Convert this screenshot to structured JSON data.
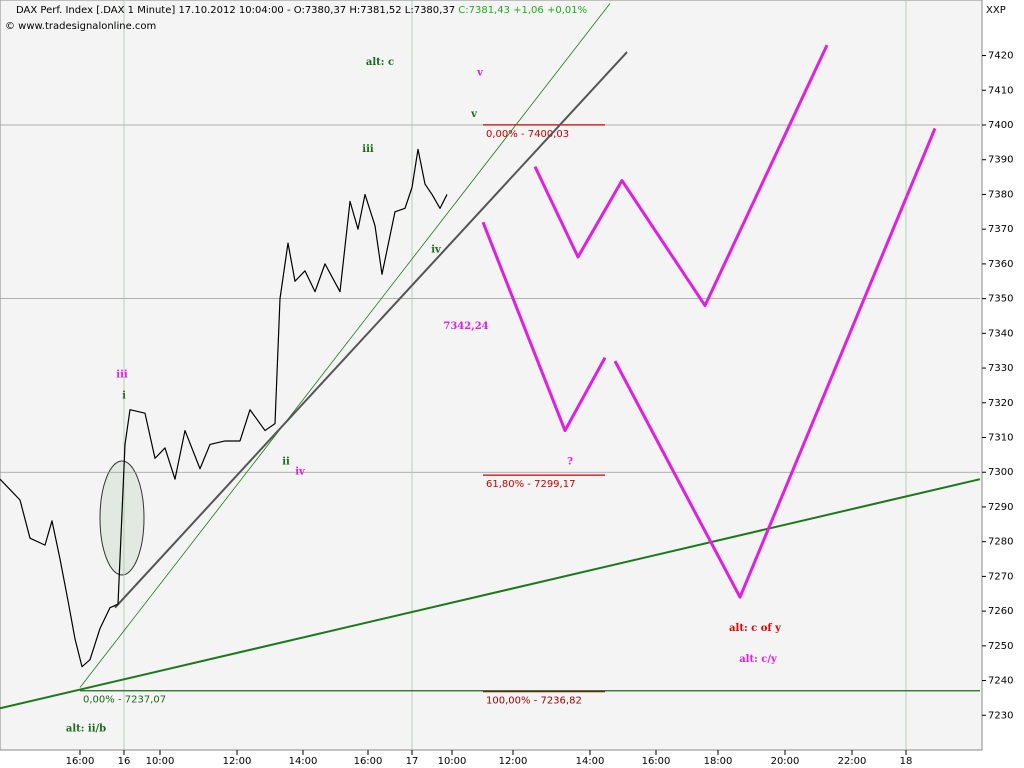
{
  "chart_data": {
    "type": "line",
    "title": "DAX Perf. Index [.DAX 1 Minute] 17.10.2012 10:04:00 - O:7380,37 H:7381,52 L:7380,37",
    "title_close": "C:7381,43 +1,06 +0,01%",
    "title_close_color": "#22aa22",
    "credit": "© www.tradesignalonline.com",
    "symbol": "XXP",
    "xlim": [
      0,
      980
    ],
    "ylim": [
      7220,
      7436
    ],
    "xticks": [
      {
        "value": 80,
        "label": "16:00"
      },
      {
        "value": 124,
        "label": "16"
      },
      {
        "value": 160,
        "label": "10:00"
      },
      {
        "value": 237,
        "label": "12:00"
      },
      {
        "value": 303,
        "label": "14:00"
      },
      {
        "value": 368,
        "label": "16:00"
      },
      {
        "value": 412,
        "label": "17"
      },
      {
        "value": 452,
        "label": "10:00"
      },
      {
        "value": 513,
        "label": "12:00"
      },
      {
        "value": 590,
        "label": "14:00"
      },
      {
        "value": 656,
        "label": "16:00"
      },
      {
        "value": 718,
        "label": "18:00"
      },
      {
        "value": 785,
        "label": "20:00"
      },
      {
        "value": 852,
        "label": "22:00"
      },
      {
        "value": 906,
        "label": "18"
      }
    ],
    "xgrid": [
      124,
      412,
      906
    ],
    "yticks": [
      7230,
      7240,
      7250,
      7260,
      7270,
      7280,
      7290,
      7300,
      7310,
      7320,
      7330,
      7340,
      7350,
      7360,
      7370,
      7380,
      7390,
      7400,
      7410,
      7420
    ],
    "ygrid": [
      7300,
      7350,
      7400
    ],
    "price": {
      "color": "#000000",
      "x": [
        0,
        10,
        20,
        30,
        45,
        52,
        60,
        68,
        75,
        82,
        90,
        100,
        110,
        118,
        125,
        130,
        145,
        155,
        165,
        175,
        185,
        200,
        210,
        225,
        240,
        250,
        265,
        275,
        280,
        288,
        295,
        305,
        315,
        325,
        340,
        350,
        358,
        365,
        375,
        382,
        395,
        405,
        412,
        418,
        425,
        432,
        440,
        447
      ],
      "values": [
        7298,
        7295,
        7292,
        7281,
        7279,
        7286,
        7275,
        7263,
        7252,
        7244,
        7246,
        7255,
        7261,
        7262,
        7308,
        7318,
        7317,
        7304,
        7307,
        7298,
        7312,
        7301,
        7308,
        7309,
        7309,
        7318,
        7312,
        7314,
        7350,
        7366,
        7355,
        7358,
        7352,
        7360,
        7352,
        7378,
        7370,
        7380,
        7371,
        7357,
        7375,
        7376,
        7382,
        7393,
        7383,
        7380,
        7376,
        7380
      ]
    },
    "lines": [
      {
        "color": "#1a7a1a",
        "width": 2,
        "x": [
          0,
          980
        ],
        "values": [
          7232,
          7298
        ]
      },
      {
        "color": "#1a7a1a",
        "width": 0.8,
        "x": [
          80,
          610
        ],
        "values": [
          7238,
          7435
        ]
      },
      {
        "color": "#555555",
        "width": 2,
        "x": [
          115,
          627
        ],
        "values": [
          7261,
          7421
        ]
      },
      {
        "color": "#e020e0",
        "width": 3,
        "x": [
          483,
          565,
          605
        ],
        "values": [
          7372,
          7312,
          7333
        ]
      },
      {
        "color": "#e020e0",
        "width": 3,
        "x": [
          615,
          740,
          935
        ],
        "values": [
          7332,
          7264,
          7399
        ]
      },
      {
        "color": "#e020e0",
        "width": 3,
        "x": [
          535,
          578,
          622,
          705,
          827
        ],
        "values": [
          7388,
          7362,
          7384,
          7348,
          7423
        ]
      }
    ],
    "levels": [
      {
        "label": "0,00% - 7400,03",
        "value": 7400.03,
        "x": [
          483,
          605
        ],
        "color": "#cc0000"
      },
      {
        "label": "61,80% - 7299,17",
        "value": 7299.17,
        "x": [
          483,
          605
        ],
        "color": "#cc0000"
      },
      {
        "label": "100,00% - 7236,82",
        "value": 7236.82,
        "x": [
          483,
          605
        ],
        "color": "#990000"
      },
      {
        "label": "0,00% - 7237,07",
        "value": 7237.07,
        "x": [
          80,
          980
        ],
        "color": "#1a6a1a"
      }
    ],
    "annotations": [
      {
        "text": "alt: c",
        "x": 380,
        "y": 7418,
        "color": "#1a6a1a",
        "size": 18
      },
      {
        "text": "v",
        "x": 480,
        "y": 7415,
        "color": "#e020e0",
        "size": 13
      },
      {
        "text": "v",
        "x": 474,
        "y": 7403,
        "color": "#1a6a1a",
        "size": 13
      },
      {
        "text": "iii",
        "x": 368,
        "y": 7393,
        "color": "#1a6a1a",
        "size": 13
      },
      {
        "text": "iv",
        "x": 436,
        "y": 7364,
        "color": "#1a6a1a",
        "size": 13
      },
      {
        "text": "7342,24",
        "x": 466,
        "y": 7342,
        "color": "#e020e0",
        "size": 10
      },
      {
        "text": "iii",
        "x": 122,
        "y": 7328,
        "color": "#e020e0",
        "size": 13
      },
      {
        "text": "i",
        "x": 124,
        "y": 7322,
        "color": "#1a6a1a",
        "size": 13
      },
      {
        "text": "ii",
        "x": 286,
        "y": 7303,
        "color": "#1a6a1a",
        "size": 13
      },
      {
        "text": "iv",
        "x": 300,
        "y": 7300,
        "color": "#e020e0",
        "size": 13
      },
      {
        "text": "?",
        "x": 570,
        "y": 7303,
        "color": "#e020e0",
        "size": 18
      },
      {
        "text": "alt: c of y",
        "x": 755,
        "y": 7255,
        "color": "#dd0000",
        "size": 18
      },
      {
        "text": "alt: c/y",
        "x": 758,
        "y": 7246,
        "color": "#e020e0",
        "size": 18
      },
      {
        "text": "alt: ii/b",
        "x": 86,
        "y": 7226,
        "color": "#1a6a1a",
        "size": 18
      }
    ]
  }
}
